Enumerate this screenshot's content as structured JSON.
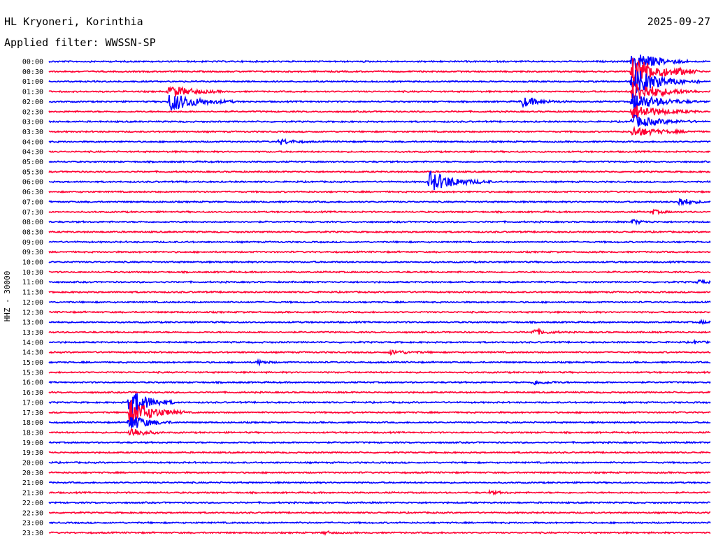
{
  "header": {
    "station": "HL Kryoneri, Korinthia",
    "date": "2025-09-27",
    "filter": "Applied filter: WWSSN-SP"
  },
  "chart_data": {
    "type": "line",
    "ylabel": "HHZ - 30000",
    "trace_colors": [
      "#0000ff",
      "#ff0033"
    ],
    "rows": [
      "00:00",
      "00:30",
      "01:00",
      "01:30",
      "02:00",
      "02:30",
      "03:00",
      "03:30",
      "04:00",
      "04:30",
      "05:00",
      "05:30",
      "06:00",
      "06:30",
      "07:00",
      "07:30",
      "08:00",
      "08:30",
      "09:00",
      "09:30",
      "10:00",
      "10:30",
      "11:00",
      "11:30",
      "12:00",
      "12:30",
      "13:00",
      "13:30",
      "14:00",
      "14:30",
      "15:00",
      "15:30",
      "16:00",
      "16:30",
      "17:00",
      "17:30",
      "18:00",
      "18:30",
      "19:00",
      "19:30",
      "20:00",
      "20:30",
      "21:00",
      "21:30",
      "22:00",
      "22:30",
      "23:00",
      "23:30"
    ],
    "events": [
      {
        "row": "01:30",
        "minute": 5.5,
        "amplitude": 9,
        "duration": 2.5
      },
      {
        "row": "02:00",
        "minute": 5.5,
        "amplitude": 14,
        "duration": 3
      },
      {
        "row": "02:00",
        "minute": 21.5,
        "amplitude": 7,
        "duration": 2
      },
      {
        "row": "04:00",
        "minute": 10.5,
        "amplitude": 4,
        "duration": 1.5
      },
      {
        "row": "06:00",
        "minute": 17.3,
        "amplitude": 15,
        "duration": 2.8
      },
      {
        "row": "00:00",
        "minute": 26.5,
        "amplitude": 16,
        "duration": 2.5
      },
      {
        "row": "00:30",
        "minute": 26.5,
        "amplitude": 22,
        "duration": 3
      },
      {
        "row": "01:00",
        "minute": 26.5,
        "amplitude": 20,
        "duration": 3
      },
      {
        "row": "01:30",
        "minute": 26.5,
        "amplitude": 16,
        "duration": 3
      },
      {
        "row": "02:00",
        "minute": 26.5,
        "amplitude": 13,
        "duration": 3
      },
      {
        "row": "02:30",
        "minute": 26.5,
        "amplitude": 11,
        "duration": 3
      },
      {
        "row": "03:00",
        "minute": 26.5,
        "amplitude": 9,
        "duration": 3
      },
      {
        "row": "03:30",
        "minute": 26.5,
        "amplitude": 7,
        "duration": 3
      },
      {
        "row": "00:30",
        "minute": 28.5,
        "amplitude": 2,
        "duration": 1
      },
      {
        "row": "07:00",
        "minute": 28.6,
        "amplitude": 6,
        "duration": 1.3
      },
      {
        "row": "07:30",
        "minute": 27.4,
        "amplitude": 3,
        "duration": 1
      },
      {
        "row": "08:00",
        "minute": 26.5,
        "amplitude": 3,
        "duration": 1.2
      },
      {
        "row": "11:00",
        "minute": 29.5,
        "amplitude": 3,
        "duration": 0.8
      },
      {
        "row": "13:30",
        "minute": 22.0,
        "amplitude": 4,
        "duration": 1.5
      },
      {
        "row": "14:30",
        "minute": 15.5,
        "amplitude": 3,
        "duration": 2
      },
      {
        "row": "15:00",
        "minute": 9.5,
        "amplitude": 3,
        "duration": 1
      },
      {
        "row": "16:00",
        "minute": 22.0,
        "amplitude": 3,
        "duration": 1.5
      },
      {
        "row": "17:00",
        "minute": 3.7,
        "amplitude": 22,
        "duration": 2
      },
      {
        "row": "17:30",
        "minute": 3.7,
        "amplitude": 20,
        "duration": 2.5
      },
      {
        "row": "18:00",
        "minute": 3.7,
        "amplitude": 12,
        "duration": 2
      },
      {
        "row": "18:30",
        "minute": 3.7,
        "amplitude": 8,
        "duration": 1.5
      },
      {
        "row": "13:00",
        "minute": 29.6,
        "amplitude": 2,
        "duration": 0.8
      },
      {
        "row": "14:00",
        "minute": 29.3,
        "amplitude": 2,
        "duration": 0.8
      },
      {
        "row": "21:30",
        "minute": 20.0,
        "amplitude": 2,
        "duration": 1.2
      },
      {
        "row": "23:30",
        "minute": 12.5,
        "amplitude": 2,
        "duration": 1
      }
    ]
  }
}
